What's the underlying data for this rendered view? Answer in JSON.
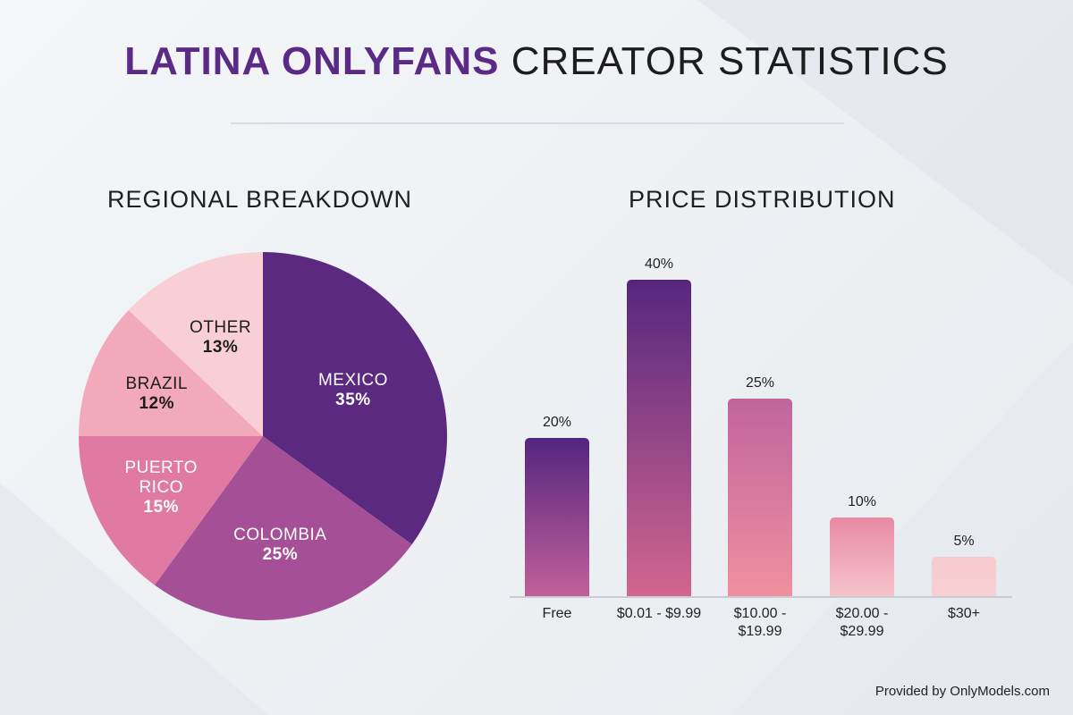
{
  "title": {
    "highlight": "LATINA ONLYFANS",
    "rest": "CREATOR STATISTICS"
  },
  "footer": "Provided by OnlyModels.com",
  "colors": {
    "accent": "#5b2a86",
    "text": "#1d1d1d",
    "divider": "#d8dbe0"
  },
  "chart_data": [
    {
      "type": "pie",
      "title": "REGIONAL BREAKDOWN",
      "categories": [
        "MEXICO",
        "COLOMBIA",
        "PUERTO RICO",
        "BRAZIL",
        "OTHER"
      ],
      "values": [
        35,
        25,
        15,
        12,
        13
      ],
      "labels": [
        "35%",
        "25%",
        "15%",
        "12%",
        "13%"
      ],
      "colors": [
        "#5b2a80",
        "#a44f96",
        "#e07aa2",
        "#f2a9bb",
        "#f7cfd4"
      ],
      "start_angle_deg": 0,
      "direction": "clockwise"
    },
    {
      "type": "bar",
      "title": "PRICE DISTRIBUTION",
      "categories": [
        "Free",
        "$0.01 - $9.99",
        "$10.00 - $19.99",
        "$20.00 - $29.99",
        "$30+"
      ],
      "values": [
        20,
        40,
        25,
        10,
        5
      ],
      "value_labels": [
        "20%",
        "40%",
        "25%",
        "10%",
        "5%"
      ],
      "xlabel": "",
      "ylabel": "",
      "ylim": [
        0,
        40
      ],
      "grid": false,
      "gradients": [
        [
          "#54257f",
          "#c2609a"
        ],
        [
          "#55267f",
          "#d2668f"
        ],
        [
          "#c0649e",
          "#f0909f"
        ],
        [
          "#e88aa4",
          "#f6c4cb"
        ],
        [
          "#f6c9cd",
          "#f7d1d4"
        ]
      ]
    }
  ]
}
